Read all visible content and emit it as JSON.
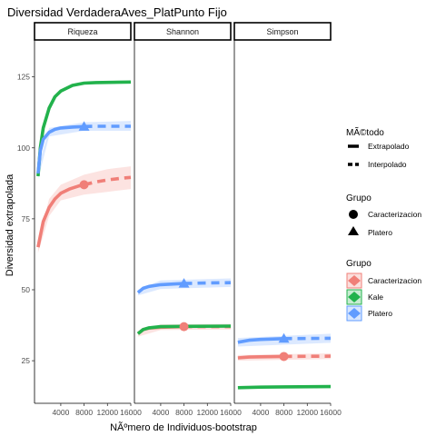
{
  "chart_data": {
    "type": "line",
    "title": "Diversidad VerdaderaAves_PlatPunto Fijo",
    "xlabel": "NÃºmero de Individuos-bootstrap",
    "ylabel": "Diversidad extrapolada",
    "ylim": [
      10,
      138
    ],
    "xlim": [
      -500,
      16000
    ],
    "yticks": [
      25,
      50,
      75,
      100,
      125
    ],
    "xticks": [
      4000,
      8000,
      12000,
      16000
    ],
    "grid": false,
    "legend_position": "right",
    "panels": [
      {
        "name": "Riqueza",
        "series": [
          {
            "group": "Caracterizacion",
            "color": "#F07F78",
            "interp": [
              [
                100,
                65
              ],
              [
                500,
                69
              ],
              [
                1000,
                74
              ],
              [
                2000,
                79
              ],
              [
                3000,
                82
              ],
              [
                4000,
                84
              ],
              [
                5500,
                85.5
              ],
              [
                7000,
                86.5
              ],
              [
                7989,
                87
              ]
            ],
            "extrap": [
              [
                7989,
                87
              ],
              [
                10000,
                88
              ],
              [
                12000,
                88.7
              ],
              [
                14000,
                89.2
              ],
              [
                16000,
                89.6
              ]
            ],
            "band_upper": [
              [
                100,
                67
              ],
              [
                2000,
                82
              ],
              [
                4000,
                87
              ],
              [
                7989,
                90.5
              ],
              [
                12000,
                92.5
              ],
              [
                16000,
                93.5
              ]
            ],
            "band_lower": [
              [
                100,
                63
              ],
              [
                2000,
                76
              ],
              [
                4000,
                81.5
              ],
              [
                7989,
                83.5
              ],
              [
                12000,
                84.5
              ],
              [
                16000,
                85.5
              ]
            ],
            "point": [
              7989,
              87
            ]
          },
          {
            "group": "Kale",
            "color": "#22B24C",
            "interp": [
              [
                100,
                90
              ],
              [
                500,
                100
              ],
              [
                1000,
                107
              ],
              [
                2000,
                114
              ],
              [
                3000,
                118
              ],
              [
                4000,
                120
              ],
              [
                6000,
                122
              ],
              [
                8000,
                122.8
              ],
              [
                10000,
                123
              ],
              [
                16000,
                123.2
              ]
            ],
            "extrap": [],
            "band_upper": [],
            "band_lower": [],
            "point": null
          },
          {
            "group": "Platero",
            "color": "#619CFF",
            "interp": [
              [
                100,
                91
              ],
              [
                500,
                99
              ],
              [
                1000,
                103
              ],
              [
                2000,
                105.5
              ],
              [
                3000,
                106.5
              ],
              [
                4000,
                107
              ],
              [
                6000,
                107.3
              ],
              [
                7989,
                107.5
              ]
            ],
            "extrap": [
              [
                7989,
                107.5
              ],
              [
                10000,
                107.6
              ],
              [
                13000,
                107.6
              ],
              [
                16000,
                107.6
              ]
            ],
            "band_upper": [
              [
                100,
                93
              ],
              [
                2000,
                107
              ],
              [
                7989,
                109
              ],
              [
                16000,
                109.5
              ]
            ],
            "band_lower": [
              [
                100,
                89
              ],
              [
                2000,
                104
              ],
              [
                7989,
                106
              ],
              [
                16000,
                106
              ]
            ],
            "point": [
              7989,
              107.5
            ]
          }
        ]
      },
      {
        "name": "Shannon",
        "series": [
          {
            "group": "Caracterizacion",
            "color": "#F07F78",
            "interp": [
              [
                100,
                34.5
              ],
              [
                1000,
                36
              ],
              [
                2000,
                36.5
              ],
              [
                4000,
                36.8
              ],
              [
                7989,
                37
              ]
            ],
            "extrap": [
              [
                7989,
                37
              ],
              [
                12000,
                37
              ],
              [
                16000,
                37
              ]
            ],
            "band_upper": [
              [
                100,
                35.5
              ],
              [
                4000,
                37.8
              ],
              [
                16000,
                38
              ]
            ],
            "band_lower": [
              [
                100,
                33.5
              ],
              [
                4000,
                35.8
              ],
              [
                16000,
                36
              ]
            ],
            "point": [
              7989,
              37
            ]
          },
          {
            "group": "Kale",
            "color": "#22B24C",
            "interp": [
              [
                100,
                34.5
              ],
              [
                1000,
                36
              ],
              [
                2000,
                36.6
              ],
              [
                4000,
                37
              ],
              [
                8000,
                37.1
              ],
              [
                16000,
                37.2
              ]
            ],
            "extrap": [],
            "band_upper": [],
            "band_lower": [],
            "point": null
          },
          {
            "group": "Platero",
            "color": "#619CFF",
            "interp": [
              [
                100,
                49
              ],
              [
                1000,
                50.5
              ],
              [
                2000,
                51.2
              ],
              [
                4000,
                51.8
              ],
              [
                7989,
                52.2
              ]
            ],
            "extrap": [
              [
                7989,
                52.2
              ],
              [
                12000,
                52.4
              ],
              [
                16000,
                52.5
              ]
            ],
            "band_upper": [
              [
                100,
                50
              ],
              [
                4000,
                53.3
              ],
              [
                16000,
                54
              ]
            ],
            "band_lower": [
              [
                100,
                48
              ],
              [
                4000,
                50.3
              ],
              [
                16000,
                51
              ]
            ],
            "point": [
              7989,
              52.2
            ]
          }
        ]
      },
      {
        "name": "Simpson",
        "series": [
          {
            "group": "Caracterizacion",
            "color": "#F07F78",
            "interp": [
              [
                100,
                26
              ],
              [
                2000,
                26.3
              ],
              [
                4000,
                26.4
              ],
              [
                7989,
                26.5
              ]
            ],
            "extrap": [
              [
                7989,
                26.5
              ],
              [
                16000,
                26.6
              ]
            ],
            "band_upper": [
              [
                100,
                27
              ],
              [
                16000,
                27.6
              ]
            ],
            "band_lower": [
              [
                100,
                25
              ],
              [
                16000,
                25.6
              ]
            ],
            "point": [
              7989,
              26.5
            ]
          },
          {
            "group": "Kale",
            "color": "#22B24C",
            "interp": [
              [
                100,
                15.5
              ],
              [
                4000,
                15.7
              ],
              [
                8000,
                15.8
              ],
              [
                16000,
                15.9
              ]
            ],
            "extrap": [],
            "band_upper": [],
            "band_lower": [],
            "point": null
          },
          {
            "group": "Platero",
            "color": "#619CFF",
            "interp": [
              [
                100,
                31.5
              ],
              [
                2000,
                32.2
              ],
              [
                4000,
                32.5
              ],
              [
                7989,
                32.8
              ]
            ],
            "extrap": [
              [
                7989,
                32.8
              ],
              [
                16000,
                32.9
              ]
            ],
            "band_upper": [
              [
                100,
                33
              ],
              [
                16000,
                34.5
              ]
            ],
            "band_lower": [
              [
                100,
                30
              ],
              [
                16000,
                31.3
              ]
            ],
            "point": [
              7989,
              32.8
            ]
          }
        ]
      }
    ],
    "legends": {
      "metodo": {
        "title": "MÃ©todo",
        "items": [
          "Extrapolado",
          "Interpolado"
        ]
      },
      "grupo_shape": {
        "title": "Grupo",
        "items": [
          "Caracterizacion",
          "Platero"
        ]
      },
      "grupo_color": {
        "title": "Grupo",
        "items": [
          {
            "label": "Caracterizacion",
            "color": "#F07F78"
          },
          {
            "label": "Kale",
            "color": "#22B24C"
          },
          {
            "label": "Platero",
            "color": "#619CFF"
          }
        ]
      }
    }
  }
}
